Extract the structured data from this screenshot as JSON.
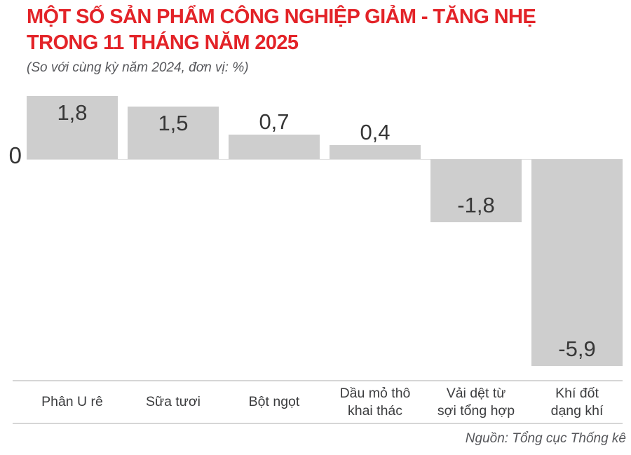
{
  "header": {
    "title_line1": "MỘT SỐ SẢN PHẨM CÔNG NGHIỆP GIẢM - TĂNG NHẸ",
    "title_line2": "TRONG 11 THÁNG NĂM 2025",
    "subtitle": "(So với cùng kỳ năm 2024, đơn vị: %)",
    "title_color": "#e32328"
  },
  "chart_data": {
    "type": "bar",
    "title": "MỘT SỐ SẢN PHẨM CÔNG NGHIỆP GIẢM - TĂNG NHẸ TRONG 11 THÁNG NĂM 2025",
    "subtitle": "(So với cùng kỳ năm 2024, đơn vị: %)",
    "unit": "%",
    "categories": [
      "Phân U rê",
      "Sữa tươi",
      "Bột ngọt",
      "Dầu mỏ thô khai thác",
      "Vải dệt từ sợi tổng hợp",
      "Khí đốt dạng khí"
    ],
    "categories_multiline": [
      [
        "Phân U rê"
      ],
      [
        "Sữa tươi"
      ],
      [
        "Bột ngọt"
      ],
      [
        "Dầu mỏ thô",
        "khai thác"
      ],
      [
        "Vải dệt từ",
        "sợi tổng hợp"
      ],
      [
        "Khí đốt",
        "dạng khí"
      ]
    ],
    "values": [
      1.8,
      1.5,
      0.7,
      0.4,
      -1.8,
      -5.9
    ],
    "value_labels": [
      "1,8",
      "1,5",
      "0,7",
      "0,4",
      "-1,8",
      "-5,9"
    ],
    "zero_label": "0",
    "bar_color": "#cecece",
    "ylim": [
      -5.9,
      1.8
    ],
    "baseline": 0,
    "grid": false,
    "legend": false
  },
  "footer": {
    "source": "Nguồn: Tổng cục Thống kê"
  }
}
